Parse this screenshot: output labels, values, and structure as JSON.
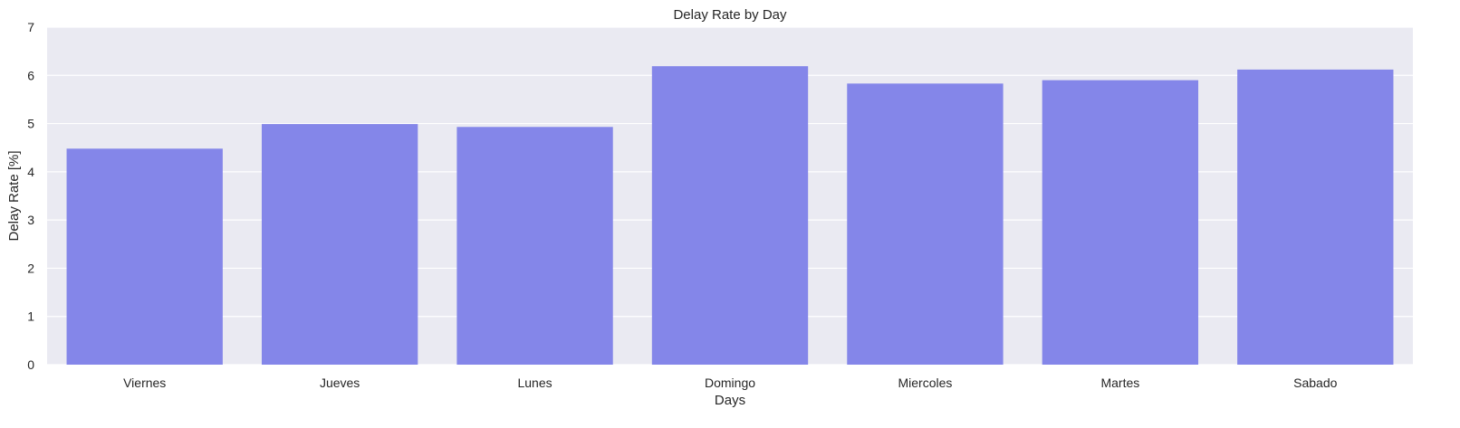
{
  "chart_data": {
    "type": "bar",
    "title": "Delay Rate by Day",
    "xlabel": "Days",
    "ylabel": "Delay Rate [%]",
    "categories": [
      "Viernes",
      "Jueves",
      "Lunes",
      "Domingo",
      "Miercoles",
      "Martes",
      "Sabado"
    ],
    "values": [
      4.48,
      4.99,
      4.93,
      6.19,
      5.83,
      5.9,
      6.12
    ],
    "ylim": [
      0,
      7
    ],
    "yticks": [
      "0",
      "1",
      "2",
      "3",
      "4",
      "5",
      "6",
      "7"
    ],
    "grid": true,
    "legend": "none",
    "colors": {
      "bar": "#8486E9",
      "plot_background": "#EAEAF2",
      "grid": "#FFFFFF"
    }
  }
}
